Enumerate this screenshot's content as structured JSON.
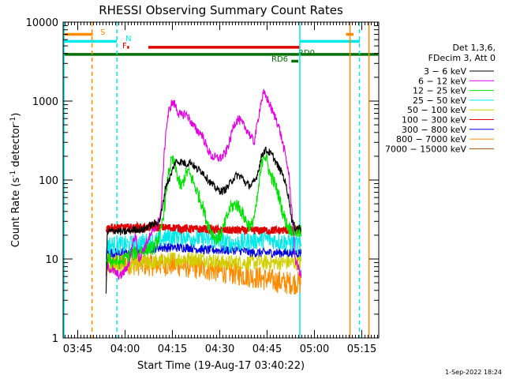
{
  "chart_data": {
    "type": "line",
    "title": "RHESSI Observing Summary Count Rates",
    "xlabel": "Start Time (19-Aug-17 03:40:22)",
    "ylabel": "Count Rate (s⁻¹ detector⁻¹)",
    "ylabel_parts": [
      "Count Rate (s",
      "-1",
      " detector",
      "-1",
      ")"
    ],
    "yscale": "log",
    "ylim": [
      1,
      10000
    ],
    "xlim_minutes": [
      0,
      100
    ],
    "yticks": [
      {
        "value": 1,
        "label": "1"
      },
      {
        "value": 10,
        "label": "10"
      },
      {
        "value": 100,
        "label": "100"
      },
      {
        "value": 1000,
        "label": "1000"
      },
      {
        "value": 10000,
        "label": "10000"
      }
    ],
    "xticks": [
      {
        "minute": 4.63,
        "label": "03:45"
      },
      {
        "minute": 19.63,
        "label": "04:00"
      },
      {
        "minute": 34.63,
        "label": "04:15"
      },
      {
        "minute": 49.63,
        "label": "04:30"
      },
      {
        "minute": 64.63,
        "label": "04:45"
      },
      {
        "minute": 79.63,
        "label": "05:00"
      },
      {
        "minute": 94.63,
        "label": "05:15"
      }
    ],
    "legend": {
      "position": "right",
      "header": [
        "Det 1,3,6,",
        "FDecim 3, Att 0"
      ],
      "entries": [
        {
          "label": "3 − 6 keV",
          "color": "#000000"
        },
        {
          "label": "6 − 12 keV",
          "color": "#e000e0"
        },
        {
          "label": "12 − 25 keV",
          "color": "#00e000"
        },
        {
          "label": "25 − 50 keV",
          "color": "#00e8e8"
        },
        {
          "label": "50 − 100 keV",
          "color": "#d0d000"
        },
        {
          "label": "100 − 300 keV",
          "color": "#e00000"
        },
        {
          "label": "300 − 800 keV",
          "color": "#0000e0"
        },
        {
          "label": "800 − 7000 keV",
          "color": "#ff8c00"
        },
        {
          "label": "7000 − 15000 keV",
          "color": "#a05000"
        }
      ]
    },
    "series": [
      {
        "name": "3 − 6 keV",
        "color": "#000000",
        "noise": 0.05,
        "points": [
          [
            13.6,
            3.5
          ],
          [
            14.0,
            22
          ],
          [
            16.5,
            23
          ],
          [
            18.5,
            22
          ],
          [
            19.5,
            22
          ],
          [
            21.5,
            23
          ],
          [
            23.5,
            24
          ],
          [
            25,
            23
          ],
          [
            27,
            26
          ],
          [
            29,
            28
          ],
          [
            30.5,
            30
          ],
          [
            31.5,
            45
          ],
          [
            32.5,
            85
          ],
          [
            34,
            110
          ],
          [
            35.5,
            170
          ],
          [
            37.5,
            170
          ],
          [
            39,
            160
          ],
          [
            40.5,
            170
          ],
          [
            42,
            140
          ],
          [
            44,
            130
          ],
          [
            46,
            100
          ],
          [
            47.5,
            85
          ],
          [
            49,
            75
          ],
          [
            50.5,
            72
          ],
          [
            52,
            80
          ],
          [
            53.5,
            100
          ],
          [
            55,
            115
          ],
          [
            56.5,
            110
          ],
          [
            58,
            90
          ],
          [
            59.5,
            85
          ],
          [
            61,
            100
          ],
          [
            62,
            140
          ],
          [
            63,
            210
          ],
          [
            64,
            240
          ],
          [
            65,
            230
          ],
          [
            66.5,
            200
          ],
          [
            68,
            150
          ],
          [
            69.5,
            120
          ],
          [
            70.5,
            90
          ],
          [
            71.5,
            60
          ],
          [
            72.5,
            30
          ],
          [
            73.5,
            25
          ],
          [
            75.5,
            25
          ]
        ]
      },
      {
        "name": "6 − 12 keV",
        "color": "#e000e0",
        "noise": 0.06,
        "points": [
          [
            13.6,
            6
          ],
          [
            14.0,
            8
          ],
          [
            16,
            7
          ],
          [
            18,
            6
          ],
          [
            19.5,
            7
          ],
          [
            21,
            9
          ],
          [
            22,
            16
          ],
          [
            23,
            20
          ],
          [
            24,
            10
          ],
          [
            25,
            12
          ],
          [
            27,
            18
          ],
          [
            28.5,
            22
          ],
          [
            30,
            28
          ],
          [
            31,
            40
          ],
          [
            31.5,
            100
          ],
          [
            32.5,
            400
          ],
          [
            33.5,
            750
          ],
          [
            34.5,
            950
          ],
          [
            35.5,
            900
          ],
          [
            36.5,
            700
          ],
          [
            37.5,
            650
          ],
          [
            38.5,
            700
          ],
          [
            39.5,
            650
          ],
          [
            41,
            500
          ],
          [
            42.5,
            420
          ],
          [
            44,
            380
          ],
          [
            45.5,
            260
          ],
          [
            47,
            200
          ],
          [
            48.5,
            190
          ],
          [
            50,
            190
          ],
          [
            51.5,
            220
          ],
          [
            53,
            330
          ],
          [
            54,
            500
          ],
          [
            55.5,
            600
          ],
          [
            57,
            500
          ],
          [
            58.5,
            420
          ],
          [
            59.5,
            350
          ],
          [
            60.5,
            300
          ],
          [
            61.5,
            500
          ],
          [
            62.5,
            900
          ],
          [
            63.5,
            1250
          ],
          [
            64.5,
            1100
          ],
          [
            65.5,
            900
          ],
          [
            66.5,
            700
          ],
          [
            67.5,
            600
          ],
          [
            68.5,
            450
          ],
          [
            69.5,
            300
          ],
          [
            70.5,
            200
          ],
          [
            71.5,
            120
          ],
          [
            72.5,
            40
          ],
          [
            73.5,
            10
          ],
          [
            75.5,
            6
          ]
        ]
      },
      {
        "name": "12 − 25 keV",
        "color": "#00e000",
        "noise": 0.09,
        "points": [
          [
            13.6,
            8
          ],
          [
            14.0,
            10
          ],
          [
            18,
            9
          ],
          [
            21,
            11
          ],
          [
            25,
            13
          ],
          [
            29,
            14
          ],
          [
            31,
            22
          ],
          [
            32.5,
            60
          ],
          [
            33.5,
            130
          ],
          [
            34.5,
            180
          ],
          [
            35.5,
            150
          ],
          [
            36.5,
            100
          ],
          [
            37.5,
            80
          ],
          [
            38.5,
            110
          ],
          [
            39.5,
            130
          ],
          [
            41,
            100
          ],
          [
            42.5,
            70
          ],
          [
            44,
            50
          ],
          [
            45.5,
            30
          ],
          [
            47,
            22
          ],
          [
            48.5,
            18
          ],
          [
            50,
            20
          ],
          [
            51.5,
            30
          ],
          [
            53,
            45
          ],
          [
            55,
            50
          ],
          [
            56.5,
            40
          ],
          [
            58,
            30
          ],
          [
            59.5,
            25
          ],
          [
            61,
            40
          ],
          [
            62.5,
            120
          ],
          [
            63.5,
            220
          ],
          [
            64.5,
            180
          ],
          [
            65.5,
            120
          ],
          [
            66.5,
            100
          ],
          [
            67.5,
            80
          ],
          [
            68.5,
            60
          ],
          [
            69.5,
            40
          ],
          [
            70.5,
            30
          ],
          [
            71.5,
            25
          ],
          [
            73.5,
            22
          ],
          [
            75.5,
            22
          ]
        ]
      },
      {
        "name": "25 − 50 keV",
        "color": "#00e8e8",
        "noise": 0.12,
        "points": [
          [
            13.6,
            12
          ],
          [
            14.0,
            15
          ],
          [
            20,
            15
          ],
          [
            25,
            16
          ],
          [
            30,
            17
          ],
          [
            33,
            19
          ],
          [
            36,
            20
          ],
          [
            40,
            19
          ],
          [
            44,
            18
          ],
          [
            48,
            17
          ],
          [
            52,
            16
          ],
          [
            56,
            16
          ],
          [
            60,
            17
          ],
          [
            64,
            18
          ],
          [
            68,
            17
          ],
          [
            72,
            16
          ],
          [
            75.5,
            15
          ]
        ]
      },
      {
        "name": "50 − 100 keV",
        "color": "#d0d000",
        "noise": 0.1,
        "points": [
          [
            13.6,
            7
          ],
          [
            14.0,
            8
          ],
          [
            20,
            8
          ],
          [
            25,
            9
          ],
          [
            30,
            9
          ],
          [
            35,
            10
          ],
          [
            40,
            10
          ],
          [
            45,
            10
          ],
          [
            50,
            9
          ],
          [
            55,
            9
          ],
          [
            60,
            9
          ],
          [
            65,
            9
          ],
          [
            70,
            9
          ],
          [
            75.5,
            9
          ]
        ]
      },
      {
        "name": "100 − 300 keV",
        "color": "#e00000",
        "noise": 0.05,
        "points": [
          [
            13.6,
            24
          ],
          [
            14.0,
            25
          ],
          [
            20,
            25
          ],
          [
            25,
            25
          ],
          [
            30,
            25
          ],
          [
            35,
            25
          ],
          [
            40,
            24
          ],
          [
            45,
            24
          ],
          [
            50,
            23
          ],
          [
            55,
            23
          ],
          [
            60,
            23
          ],
          [
            65,
            23
          ],
          [
            70,
            23
          ],
          [
            75.5,
            23
          ]
        ]
      },
      {
        "name": "300 − 800 keV",
        "color": "#0000e0",
        "noise": 0.06,
        "points": [
          [
            13.6,
            11
          ],
          [
            14.0,
            12
          ],
          [
            20,
            12
          ],
          [
            25,
            13
          ],
          [
            30,
            14
          ],
          [
            35,
            14
          ],
          [
            40,
            14
          ],
          [
            45,
            13
          ],
          [
            50,
            13
          ],
          [
            55,
            13
          ],
          [
            60,
            12
          ],
          [
            65,
            12
          ],
          [
            70,
            12
          ],
          [
            75.5,
            12
          ]
        ]
      },
      {
        "name": "800 − 7000 keV",
        "color": "#ff8c00",
        "noise": 0.15,
        "points": [
          [
            13.6,
            5
          ],
          [
            14.0,
            9
          ],
          [
            20,
            9
          ],
          [
            25,
            8.5
          ],
          [
            30,
            8.5
          ],
          [
            35,
            8.5
          ],
          [
            40,
            8
          ],
          [
            45,
            7.5
          ],
          [
            50,
            7
          ],
          [
            55,
            6.5
          ],
          [
            60,
            6
          ],
          [
            65,
            5.5
          ],
          [
            70,
            5
          ],
          [
            75.5,
            5
          ]
        ]
      }
    ],
    "flags": [
      {
        "label": "S",
        "color": "#ff8c00",
        "segments": [
          [
            0.2,
            9.4
          ],
          [
            89.6,
            92
          ]
        ],
        "level": 7000
      },
      {
        "label": "N",
        "color": "#00e8e8",
        "segments": [
          [
            0.2,
            17
          ],
          [
            75,
            94
          ]
        ],
        "level": 5700
      },
      {
        "label": "F",
        "color": "#e00000",
        "segments": [
          [
            20.3,
            20.9
          ],
          [
            27,
            75
          ]
        ],
        "level": 4800
      },
      {
        "label": "RD0",
        "color": "#007000",
        "segments": [
          [
            0.2,
            99.8
          ]
        ],
        "level": 3900
      },
      {
        "label": "RD6",
        "color": "#007000",
        "segments": [
          [
            72.3,
            74.5
          ]
        ],
        "level": 3200
      }
    ],
    "vertical_markers": [
      {
        "minute": 0.25,
        "color": "#00e8e8",
        "style": "solid"
      },
      {
        "minute": 9.15,
        "color": "#ff8c00",
        "style": "dashed"
      },
      {
        "minute": 17.05,
        "color": "#00e8e8",
        "style": "dashed"
      },
      {
        "minute": 75.0,
        "color": "#00e8e8",
        "style": "solid"
      },
      {
        "minute": 90.9,
        "color": "#ff8c00",
        "style": "solid"
      },
      {
        "minute": 93.9,
        "color": "#00e8e8",
        "style": "dashed"
      },
      {
        "minute": 96.9,
        "color": "#ff8c00",
        "style": "solid"
      }
    ],
    "footer": "1-Sep-2022 18:24"
  }
}
